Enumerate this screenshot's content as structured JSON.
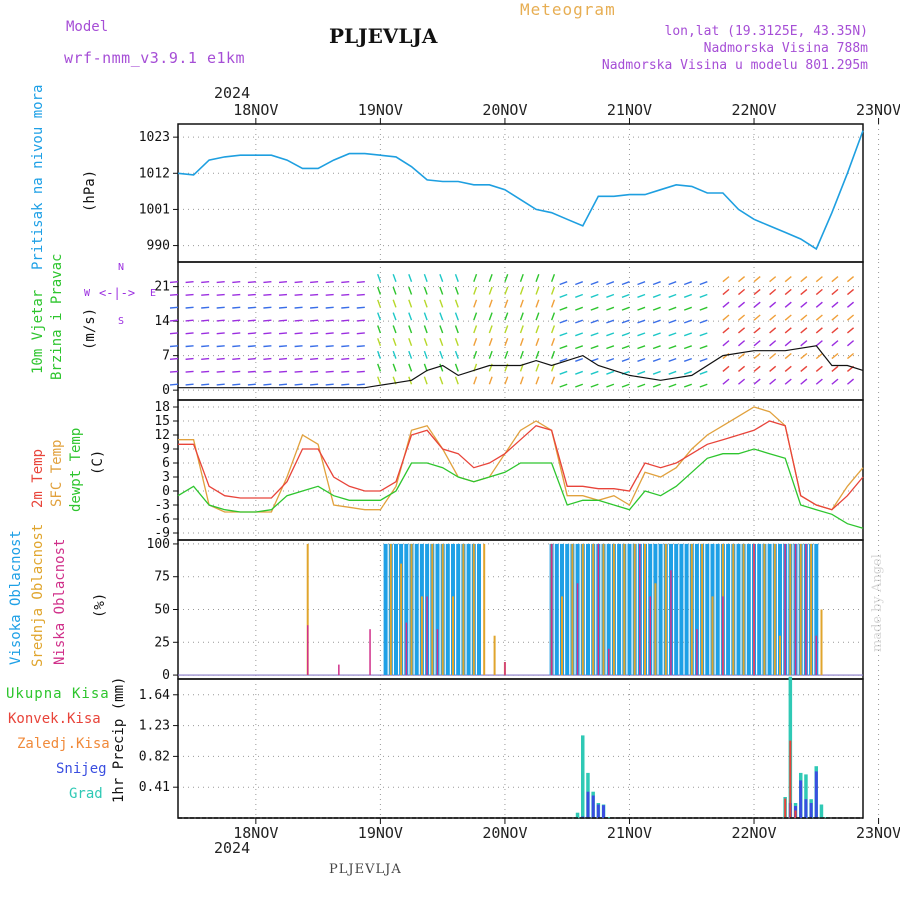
{
  "header": {
    "model_label": "Model",
    "model_name": "wrf-nmm_v3.9.1 e1km",
    "city": "PLJEVLJA",
    "meteogram_label": "Meteogram",
    "coords": "lon,lat (19.3125E, 43.35N)",
    "elevation": "Nadmorska Visina 788m",
    "elevation_model": "Nadmorska Visina u modelu 801.295m"
  },
  "footer": {
    "city": "PLJEVLJA",
    "credit": "made by Angel"
  },
  "time_axis": {
    "year": "2024",
    "ticks": [
      "18NOV",
      "19NOV",
      "20NOV",
      "21NOV",
      "22NOV",
      "23NOV"
    ],
    "start_hour": -15,
    "end_hour": 117
  },
  "colors": {
    "pressure": "#1e9fe0",
    "temp2m": "#e8443a",
    "sfc": "#e1a13d",
    "dew": "#2ec52e",
    "high_cloud": "#1ea0e6",
    "mid_cloud": "#e0a52d",
    "low_cloud": "#d0308a",
    "total_precip": "#2ec52e",
    "conv_precip": "#e8443a",
    "frozen": "#f08a3a",
    "snow": "#3a4ee0",
    "graupel": "#2fc9b5",
    "wind_purple": "#9b2ee0"
  },
  "chart_data": [
    {
      "type": "line",
      "title": "Pritisak na nivou mora",
      "ylabel": "(hPa)",
      "ylim": [
        985,
        1027
      ],
      "yticks": [
        990,
        1001,
        1012,
        1023
      ],
      "series": [
        {
          "x": [
            -15,
            -12,
            -9,
            -6,
            -3,
            0,
            3,
            6,
            9,
            12,
            15,
            18,
            21,
            24,
            27,
            30,
            33,
            36,
            39,
            42,
            45,
            48,
            51,
            54,
            57,
            60,
            63,
            66,
            69,
            72,
            75,
            78,
            81,
            84,
            87,
            90,
            93,
            96,
            99,
            102,
            105,
            108,
            111,
            114,
            117
          ],
          "values": [
            1012,
            1011.5,
            1016,
            1017,
            1017.5,
            1017.5,
            1017.5,
            1016,
            1013.5,
            1013.5,
            1016,
            1018,
            1018,
            1017.5,
            1017,
            1014,
            1010,
            1009.5,
            1009.5,
            1008.5,
            1008.5,
            1007,
            1004,
            1001,
            1000,
            998,
            996,
            1005,
            1005,
            1005.5,
            1005.5,
            1007,
            1008.5,
            1008,
            1006,
            1006,
            1001,
            998,
            996,
            994,
            992,
            989,
            1000,
            1012,
            1025
          ]
        }
      ]
    },
    {
      "type": "line",
      "title": "10m Vjetar Brzina i Pravac",
      "ylabel": "(m/s)",
      "ylim": [
        -2,
        26
      ],
      "yticks": [
        0,
        7,
        14,
        21
      ],
      "compass": {
        "north": "N",
        "south": "S",
        "west": "W",
        "east": "E"
      },
      "series": [
        {
          "name": "wind speed",
          "x": [
            -15,
            -9,
            -3,
            3,
            9,
            15,
            21,
            24,
            27,
            30,
            33,
            36,
            39,
            42,
            45,
            48,
            51,
            54,
            57,
            60,
            63,
            66,
            72,
            78,
            84,
            90,
            96,
            102,
            108,
            111,
            114,
            117
          ],
          "values": [
            0.5,
            0.5,
            0.5,
            0.5,
            0.5,
            0.5,
            0.5,
            1,
            1.5,
            2,
            4,
            5,
            3,
            4,
            5,
            5,
            5,
            6,
            5,
            6,
            7,
            5,
            3,
            2,
            3,
            7,
            8,
            8,
            9,
            5,
            5,
            4
          ]
        }
      ]
    },
    {
      "type": "line",
      "title": "2m Temp / SFC Temp / dewpt Temp",
      "ylabel": "(C)",
      "ylim": [
        -10.5,
        19.5
      ],
      "yticks": [
        -9,
        -6,
        -3,
        0,
        3,
        6,
        9,
        12,
        15,
        18
      ],
      "series": [
        {
          "name": "2m Temp",
          "x": [
            -15,
            -12,
            -9,
            -6,
            -3,
            0,
            3,
            6,
            9,
            12,
            15,
            18,
            21,
            24,
            27,
            30,
            33,
            36,
            39,
            42,
            45,
            48,
            51,
            54,
            57,
            60,
            63,
            66,
            69,
            72,
            75,
            78,
            81,
            84,
            87,
            90,
            93,
            96,
            99,
            102,
            105,
            108,
            111,
            114,
            117
          ],
          "values": [
            10,
            10,
            1,
            -1,
            -1.5,
            -1.5,
            -1.5,
            2,
            9,
            9,
            3,
            1,
            0,
            0,
            2,
            12,
            13,
            9,
            8,
            5,
            6,
            8,
            11,
            14,
            13,
            1,
            1,
            0.5,
            0.5,
            0,
            6,
            5,
            6,
            8,
            10,
            11,
            12,
            13,
            15,
            14,
            -1,
            -3,
            -4,
            -1,
            3
          ]
        },
        {
          "name": "SFC Temp",
          "x": [
            -15,
            -12,
            -9,
            -6,
            -3,
            0,
            3,
            6,
            9,
            12,
            15,
            18,
            21,
            24,
            27,
            30,
            33,
            36,
            39,
            42,
            45,
            48,
            51,
            54,
            57,
            60,
            63,
            66,
            69,
            72,
            75,
            78,
            81,
            84,
            87,
            90,
            93,
            96,
            99,
            102,
            105,
            108,
            111,
            114,
            117
          ],
          "values": [
            11,
            11,
            -3,
            -4.5,
            -4.5,
            -4.5,
            -4.5,
            3,
            12,
            10,
            -3,
            -3.5,
            -4,
            -4,
            1,
            13,
            14,
            9,
            3,
            2,
            3,
            8,
            13,
            15,
            13,
            -1,
            -1,
            -2,
            -1,
            -3,
            4,
            3,
            5,
            9,
            12,
            14,
            16,
            18,
            17,
            14,
            -1,
            -3,
            -4,
            1,
            5
          ]
        },
        {
          "name": "dewpt Temp",
          "x": [
            -15,
            -12,
            -9,
            -6,
            -3,
            0,
            3,
            6,
            9,
            12,
            15,
            18,
            21,
            24,
            27,
            30,
            33,
            36,
            39,
            42,
            45,
            48,
            51,
            54,
            57,
            60,
            63,
            66,
            69,
            72,
            75,
            78,
            81,
            84,
            87,
            90,
            93,
            96,
            99,
            102,
            105,
            108,
            111,
            114,
            117
          ],
          "values": [
            -1,
            1,
            -3,
            -4,
            -4.5,
            -4.5,
            -4,
            -1,
            0,
            1,
            -1,
            -2,
            -2,
            -2,
            0,
            6,
            6,
            5,
            3,
            2,
            3,
            4,
            6,
            6,
            6,
            -3,
            -2,
            -2,
            -3,
            -4,
            0,
            -1,
            1,
            4,
            7,
            8,
            8,
            9,
            8,
            7,
            -3,
            -4,
            -5,
            -7,
            -8
          ]
        }
      ]
    },
    {
      "type": "bar",
      "title": "Visoka Oblacnost / Srednja Oblacnost / Niska Oblacnost",
      "ylabel": "(%)",
      "ylim": [
        -3,
        103
      ],
      "yticks": [
        0,
        25,
        50,
        75,
        100
      ],
      "series": [
        {
          "name": "Visoka Oblacnost",
          "x": [
            25,
            26,
            27,
            28,
            29,
            30,
            31,
            32,
            33,
            34,
            35,
            36,
            37,
            38,
            39,
            40,
            41,
            42,
            43,
            57,
            58,
            59,
            60,
            61,
            62,
            63,
            64,
            65,
            66,
            67,
            68,
            69,
            70,
            71,
            72,
            73,
            74,
            75,
            76,
            77,
            78,
            79,
            80,
            81,
            82,
            83,
            84,
            85,
            86,
            87,
            88,
            89,
            90,
            91,
            92,
            93,
            94,
            95,
            96,
            97,
            98,
            99,
            100,
            101,
            102,
            103,
            104,
            105,
            106,
            107,
            108
          ],
          "values": [
            100,
            100,
            100,
            100,
            100,
            100,
            100,
            100,
            100,
            100,
            100,
            100,
            100,
            100,
            100,
            100,
            100,
            100,
            100,
            100,
            100,
            100,
            100,
            100,
            100,
            100,
            100,
            100,
            100,
            100,
            100,
            100,
            100,
            100,
            100,
            100,
            100,
            100,
            100,
            100,
            100,
            100,
            100,
            100,
            100,
            100,
            100,
            100,
            100,
            100,
            100,
            100,
            100,
            100,
            100,
            100,
            100,
            100,
            100,
            100,
            100,
            100,
            100,
            100,
            100,
            100,
            100,
            100,
            100,
            100,
            100
          ]
        },
        {
          "name": "Srednja Oblacnost",
          "x": [
            10,
            26,
            28,
            30,
            32,
            34,
            36,
            38,
            40,
            42,
            44,
            46,
            48,
            57,
            59,
            61,
            63,
            65,
            67,
            69,
            71,
            73,
            75,
            77,
            79,
            84,
            86,
            88,
            90,
            92,
            94,
            96,
            98,
            100,
            101,
            103,
            105,
            107,
            109
          ],
          "values": [
            100,
            100,
            85,
            100,
            60,
            100,
            100,
            60,
            100,
            100,
            100,
            30,
            10,
            100,
            60,
            100,
            100,
            100,
            100,
            100,
            100,
            100,
            100,
            70,
            100,
            100,
            100,
            60,
            100,
            100,
            100,
            100,
            100,
            100,
            30,
            100,
            100,
            100,
            50
          ]
        },
        {
          "name": "Niska Oblacnost",
          "x": [
            10,
            16,
            22,
            29,
            33,
            35,
            48,
            57,
            62,
            66,
            68,
            74,
            76,
            80,
            85,
            90,
            96,
            102,
            104,
            106,
            108
          ],
          "values": [
            38,
            8,
            35,
            40,
            60,
            35,
            10,
            100,
            70,
            100,
            20,
            100,
            60,
            80,
            35,
            60,
            100,
            100,
            100,
            100,
            30
          ]
        }
      ]
    },
    {
      "type": "bar",
      "title": "Ukupna Kisa / Konvek.Kisa / Zaledj.Kisa / Snijeg / Grad",
      "ylabel": "1hr Precip (mm)",
      "ylim": [
        0,
        1.85
      ],
      "yticks": [
        0.41,
        0.82,
        1.23,
        1.64
      ],
      "series": [
        {
          "name": "Ukupna Kisa",
          "x": [
            62,
            63,
            64,
            65,
            66,
            67,
            68,
            102,
            103,
            104,
            105,
            106,
            107,
            108,
            109,
            110
          ],
          "values": [
            0.07,
            1.1,
            0.6,
            0.35,
            0.2,
            0.18,
            0.01,
            0.28,
            1.88,
            0.2,
            0.6,
            0.58,
            0.25,
            0.69,
            0.18,
            0.01
          ]
        },
        {
          "name": "Snijeg",
          "x": [
            63,
            64,
            65,
            66,
            67,
            103,
            104,
            105,
            106,
            107,
            108
          ],
          "values": [
            0.02,
            0.35,
            0.3,
            0.18,
            0.17,
            0.2,
            0.16,
            0.5,
            0.25,
            0.2,
            0.62
          ]
        },
        {
          "name": "Zaledj.Kisa",
          "x": [
            102,
            103,
            104
          ],
          "values": [
            0.26,
            1.03,
            0.1
          ]
        }
      ]
    }
  ],
  "legend": {
    "pressure": [
      "Pritisak na nivou mora",
      "(hPa)"
    ],
    "wind": [
      "10m Vjetar",
      "Brzina i Pravac",
      "(m/s)"
    ],
    "temp": [
      "2m Temp",
      "SFC Temp",
      "dewpt Temp",
      "(C)"
    ],
    "cloud": [
      "Visoka Oblacnost",
      "Srednja Oblacnost",
      "Niska Oblacnost",
      "(%)"
    ],
    "precip": [
      "Ukupna Kisa",
      "Konvek.Kisa",
      "Zaledj.Kisa",
      "Snijeg",
      "Grad",
      "1hr Precip (mm)"
    ]
  }
}
